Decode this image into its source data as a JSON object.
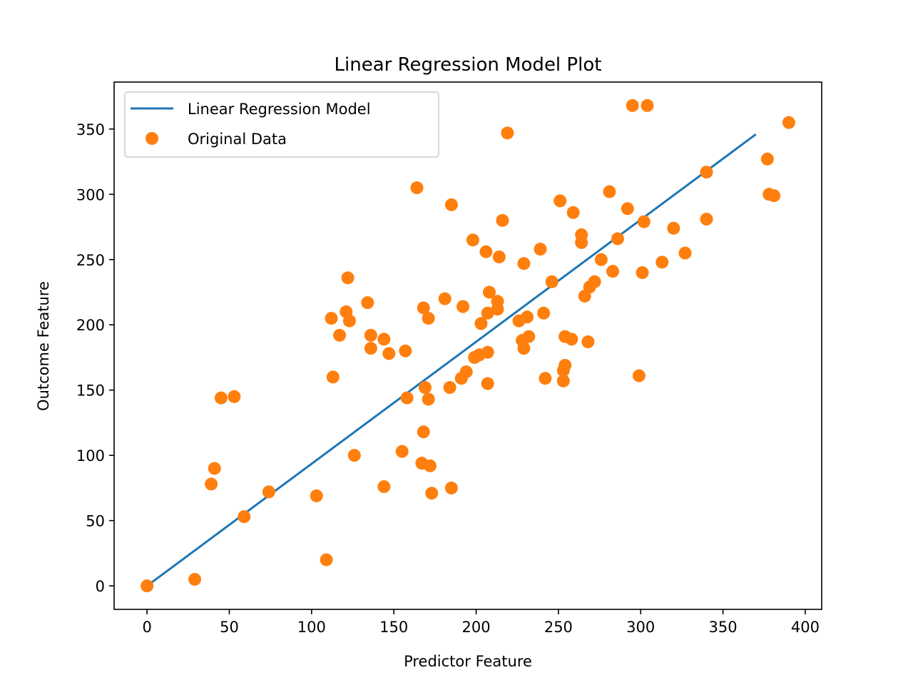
{
  "chart_data": {
    "type": "scatter",
    "title": "Linear Regression Model Plot",
    "xlabel": "Predictor Feature",
    "ylabel": "Outcome Feature",
    "xlim": [
      -20,
      410
    ],
    "ylim": [
      -18,
      386
    ],
    "xticks": [
      0,
      50,
      100,
      150,
      200,
      250,
      300,
      350,
      400
    ],
    "yticks": [
      0,
      50,
      100,
      150,
      200,
      250,
      300,
      350
    ],
    "grid": false,
    "legend_position": "upper left",
    "series": [
      {
        "name": "Linear Regression Model",
        "kind": "line",
        "color": "#1f77b4",
        "points": [
          [
            0,
            0
          ],
          [
            370,
            346
          ]
        ]
      },
      {
        "name": "Original Data",
        "kind": "scatter",
        "color": "#ff7f0e",
        "points": [
          [
            0,
            0
          ],
          [
            29,
            5
          ],
          [
            39,
            78
          ],
          [
            41,
            90
          ],
          [
            45,
            144
          ],
          [
            53,
            145
          ],
          [
            59,
            53
          ],
          [
            74,
            72
          ],
          [
            103,
            69
          ],
          [
            109,
            20
          ],
          [
            112,
            205
          ],
          [
            113,
            160
          ],
          [
            117,
            192
          ],
          [
            121,
            210
          ],
          [
            122,
            236
          ],
          [
            123,
            203
          ],
          [
            126,
            100
          ],
          [
            134,
            217
          ],
          [
            136,
            192
          ],
          [
            136,
            182
          ],
          [
            144,
            76
          ],
          [
            144,
            189
          ],
          [
            147,
            178
          ],
          [
            155,
            103
          ],
          [
            157,
            180
          ],
          [
            158,
            144
          ],
          [
            164,
            305
          ],
          [
            167,
            94
          ],
          [
            168,
            118
          ],
          [
            168,
            213
          ],
          [
            169,
            152
          ],
          [
            171,
            143
          ],
          [
            171,
            205
          ],
          [
            172,
            92
          ],
          [
            173,
            71
          ],
          [
            181,
            220
          ],
          [
            184,
            152
          ],
          [
            185,
            292
          ],
          [
            185,
            75
          ],
          [
            191,
            159
          ],
          [
            192,
            214
          ],
          [
            194,
            164
          ],
          [
            198,
            265
          ],
          [
            199,
            175
          ],
          [
            202,
            177
          ],
          [
            203,
            201
          ],
          [
            206,
            256
          ],
          [
            207,
            209
          ],
          [
            207,
            179
          ],
          [
            207,
            155
          ],
          [
            208,
            225
          ],
          [
            213,
            218
          ],
          [
            213,
            212
          ],
          [
            214,
            252
          ],
          [
            216,
            280
          ],
          [
            219,
            347
          ],
          [
            226,
            203
          ],
          [
            228,
            188
          ],
          [
            229,
            182
          ],
          [
            229,
            247
          ],
          [
            231,
            206
          ],
          [
            232,
            191
          ],
          [
            239,
            258
          ],
          [
            241,
            209
          ],
          [
            242,
            159
          ],
          [
            246,
            233
          ],
          [
            251,
            295
          ],
          [
            253,
            165
          ],
          [
            253,
            157
          ],
          [
            254,
            169
          ],
          [
            254,
            191
          ],
          [
            258,
            189
          ],
          [
            259,
            286
          ],
          [
            264,
            269
          ],
          [
            264,
            263
          ],
          [
            266,
            222
          ],
          [
            268,
            187
          ],
          [
            269,
            229
          ],
          [
            272,
            233
          ],
          [
            276,
            250
          ],
          [
            281,
            302
          ],
          [
            283,
            241
          ],
          [
            286,
            266
          ],
          [
            292,
            289
          ],
          [
            295,
            368
          ],
          [
            299,
            161
          ],
          [
            301,
            240
          ],
          [
            302,
            279
          ],
          [
            304,
            368
          ],
          [
            313,
            248
          ],
          [
            320,
            274
          ],
          [
            327,
            255
          ],
          [
            340,
            317
          ],
          [
            340,
            281
          ],
          [
            377,
            327
          ],
          [
            378,
            300
          ],
          [
            381,
            299
          ],
          [
            390,
            355
          ]
        ]
      }
    ]
  }
}
